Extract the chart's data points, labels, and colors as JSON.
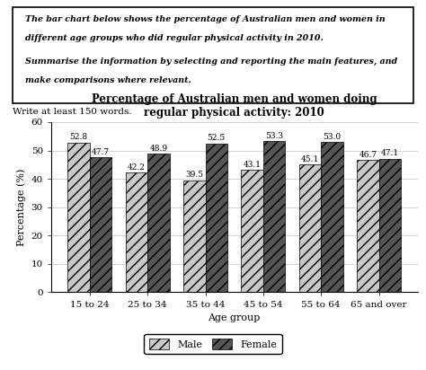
{
  "title": "Percentage of Australian men and women doing\nregular physical activity: 2010",
  "xlabel": "Age group",
  "ylabel": "Percentage (%)",
  "categories": [
    "15 to 24",
    "25 to 34",
    "35 to 44",
    "45 to 54",
    "55 to 64",
    "65 and over"
  ],
  "male_values": [
    52.8,
    42.2,
    39.5,
    43.1,
    45.1,
    46.7
  ],
  "female_values": [
    47.7,
    48.9,
    52.5,
    53.3,
    53.0,
    47.1
  ],
  "male_color": "#c8c8c8",
  "female_color": "#555555",
  "male_hatch": "///",
  "female_hatch": "///",
  "ylim": [
    0,
    60
  ],
  "yticks": [
    0,
    10,
    20,
    30,
    40,
    50,
    60
  ],
  "bar_width": 0.38,
  "legend_male": "Male",
  "legend_female": "Female",
  "prompt_line1": "The bar chart below shows the percentage of Australian men and women in",
  "prompt_line2": "different age groups who did regular physical activity in 2010.",
  "prompt_line3": "",
  "prompt_line4": "Summarise the information by selecting and reporting the main features, and",
  "prompt_line5": "make comparisons where relevant.",
  "subtext": "Write at least 150 words.",
  "plot_bg": "#ffffff",
  "title_fontsize": 8.5,
  "label_fontsize": 8,
  "tick_fontsize": 7.5,
  "value_fontsize": 6.5
}
